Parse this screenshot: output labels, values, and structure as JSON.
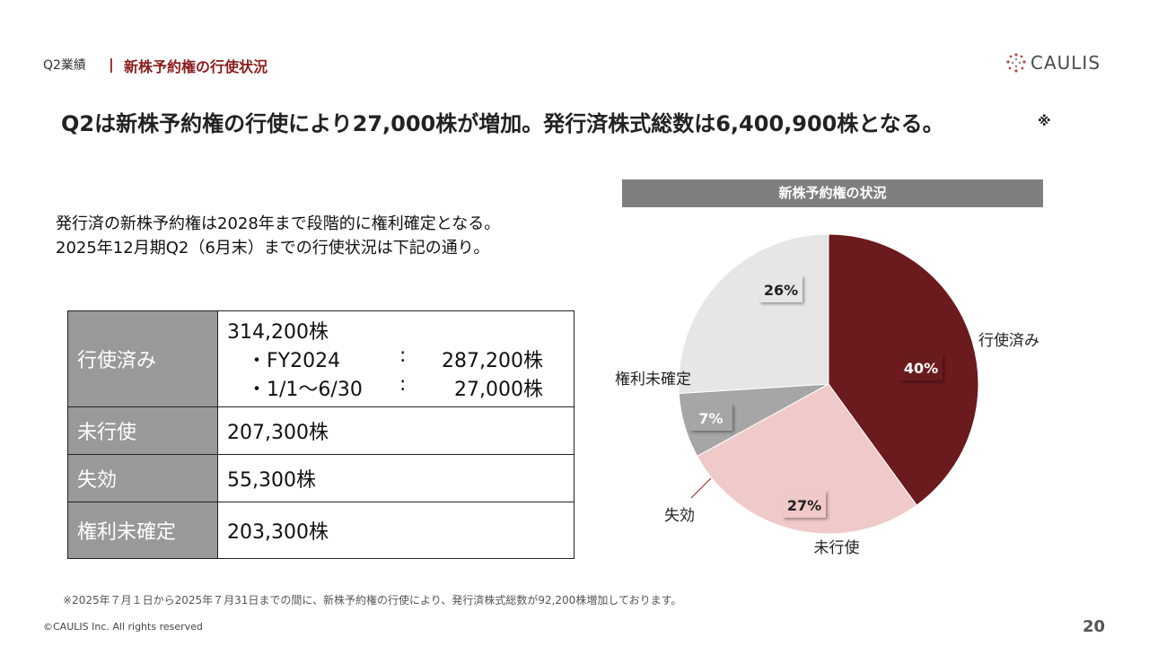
{
  "header": {
    "section_label": "Q2業績",
    "separator": "|",
    "section_title": "新株予約権の行使状況",
    "logo_text": "CAULIS"
  },
  "headline": "Q2は新株予約権の行使により27,000株が増加。発行済株式総数は6,400,900株となる。",
  "headline_note": "※",
  "description": {
    "line1": "発行済の新株予約権は2028年まで段階的に権利確定となる。",
    "line2": "2025年12月期Q2（6月末）までの行使状況は下記の通り。"
  },
  "table": {
    "rows": [
      {
        "label": "行使済み",
        "value": "314,200株",
        "details": [
          {
            "key": "・FY2024",
            "colon": ":",
            "value": "287,200株"
          },
          {
            "key": "・1/1～6/30",
            "colon": ":",
            "value": "27,000株"
          }
        ]
      },
      {
        "label": "未行使",
        "value": "207,300株"
      },
      {
        "label": "失効",
        "value": "55,300株"
      },
      {
        "label": "権利未確定",
        "value": "203,300株"
      }
    ]
  },
  "chart_data": {
    "type": "pie",
    "title": "新株予約権の状況",
    "slices": [
      {
        "label": "行使済み",
        "value": 40,
        "display": "40%",
        "color": "#6b1a1e",
        "label_color": "#ffffff"
      },
      {
        "label": "未行使",
        "value": 27,
        "display": "27%",
        "color": "#f0c9c9",
        "label_color": "#222222"
      },
      {
        "label": "失効",
        "value": 7,
        "display": "7%",
        "color": "#a6a6a6",
        "label_color": "#ffffff"
      },
      {
        "label": "権利未確定",
        "value": 26,
        "display": "26%",
        "color": "#e6e6e6",
        "label_color": "#222222"
      }
    ],
    "start": "12 o'clock, clockwise"
  },
  "footnote": "※2025年７月１日から2025年７月31日までの間に、新株予約権の行使により、発行済株式総数が92,200株増加しております。",
  "copyright": "©CAULIS Inc. All rights reserved",
  "page_number": "20"
}
